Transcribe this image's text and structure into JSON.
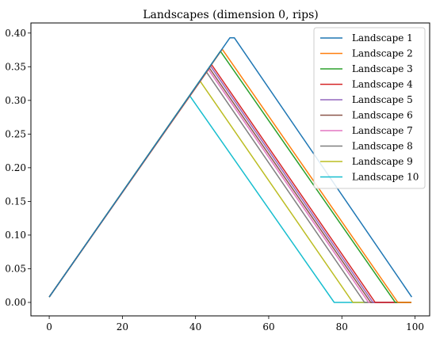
{
  "chart_data": {
    "type": "line",
    "title": "Landscapes (dimension 0, rips)",
    "xlabel": "",
    "ylabel": "",
    "xlim": [
      -5,
      104
    ],
    "ylim": [
      -0.02,
      0.415
    ],
    "xticks": [
      0,
      20,
      40,
      60,
      80,
      100
    ],
    "yticks": [
      0.0,
      0.05,
      0.1,
      0.15,
      0.2,
      0.25,
      0.3,
      0.35,
      0.4
    ],
    "ytick_labels": [
      "0.00",
      "0.05",
      "0.10",
      "0.15",
      "0.20",
      "0.25",
      "0.30",
      "0.35",
      "0.40"
    ],
    "xtick_labels": [
      "0",
      "20",
      "40",
      "60",
      "80",
      "100"
    ],
    "grid": false,
    "legend_position": "top-right",
    "series": [
      {
        "name": "Landscape 1",
        "color": "#1f77b4",
        "x": [
          0,
          49.4,
          50.6,
          99.1
        ],
        "y": [
          0.008,
          0.393,
          0.393,
          0.008
        ]
      },
      {
        "name": "Landscape 2",
        "color": "#ff7f0e",
        "x": [
          0,
          47.3,
          95.3,
          99
        ],
        "y": [
          0.008,
          0.376,
          0.0,
          0.0
        ]
      },
      {
        "name": "Landscape 3",
        "color": "#2ca02c",
        "x": [
          0,
          46.8,
          94.6,
          99
        ],
        "y": [
          0.008,
          0.373,
          0.0,
          0.0
        ]
      },
      {
        "name": "Landscape 4",
        "color": "#d62728",
        "x": [
          0,
          44.4,
          89.1,
          99
        ],
        "y": [
          0.008,
          0.353,
          0.0,
          0.0
        ]
      },
      {
        "name": "Landscape 5",
        "color": "#9467bd",
        "x": [
          0,
          44.1,
          88.5,
          99
        ],
        "y": [
          0.008,
          0.351,
          0.0,
          0.0
        ]
      },
      {
        "name": "Landscape 6",
        "color": "#8c564b",
        "x": [
          0,
          43.8,
          87.9,
          99
        ],
        "y": [
          0.008,
          0.348,
          0.0,
          0.0
        ]
      },
      {
        "name": "Landscape 7",
        "color": "#e377c2",
        "x": [
          0,
          43.5,
          87.3,
          99
        ],
        "y": [
          0.008,
          0.346,
          0.0,
          0.0
        ]
      },
      {
        "name": "Landscape 8",
        "color": "#7f7f7f",
        "x": [
          0,
          43.0,
          86.2,
          99
        ],
        "y": [
          0.008,
          0.342,
          0.0,
          0.0
        ]
      },
      {
        "name": "Landscape 9",
        "color": "#bcbd22",
        "x": [
          0,
          41.2,
          83.0,
          99
        ],
        "y": [
          0.008,
          0.329,
          0.0,
          0.0
        ]
      },
      {
        "name": "Landscape 10",
        "color": "#17becf",
        "x": [
          0,
          38.4,
          77.9,
          99
        ],
        "y": [
          0.008,
          0.307,
          0.0,
          0.0
        ]
      }
    ]
  }
}
